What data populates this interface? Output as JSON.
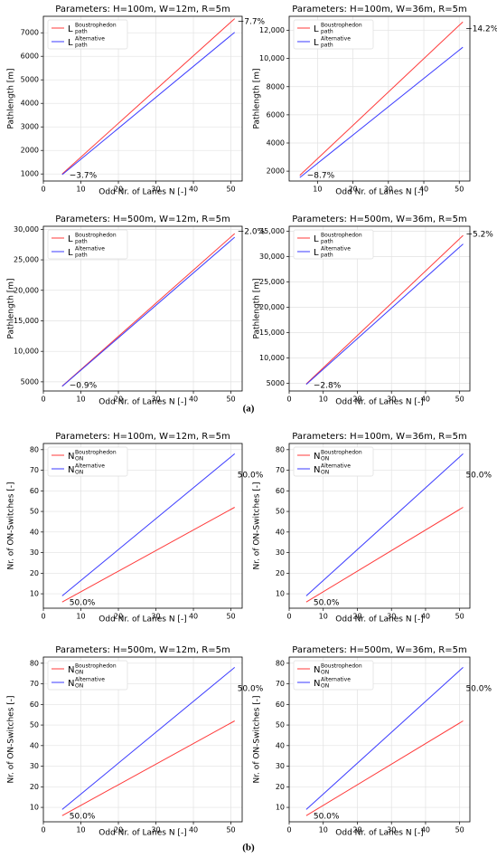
{
  "panel_labels": [
    "(a)",
    "(b)"
  ],
  "chart_data": [
    {
      "type": "line",
      "title": "Parameters: H=100m, W=12m, R=5m",
      "xlabel": "Odd Nr. of Lanes N [-]",
      "ylabel": "Pathlength [m]",
      "x": [
        5,
        51
      ],
      "xlim": [
        0,
        53
      ],
      "xticks": [
        0,
        10,
        20,
        30,
        40,
        50
      ],
      "ylim": [
        700,
        7700
      ],
      "yticks": [
        1000,
        2000,
        3000,
        4000,
        5000,
        6000,
        7000
      ],
      "grid": true,
      "legend": "upper-left",
      "series": [
        {
          "name": "Boustrophedon",
          "symbol": "L",
          "subscript": "path",
          "color": "#ff3b3b",
          "values": [
            1000,
            7600
          ]
        },
        {
          "name": "Alternative",
          "symbol": "L",
          "subscript": "path",
          "color": "#3b3bff",
          "values": [
            970,
            7020
          ]
        }
      ],
      "annotations": [
        "−7.7%",
        "−3.7%"
      ]
    },
    {
      "type": "line",
      "title": "Parameters: H=100m, W=36m, R=5m",
      "xlabel": "Odd Nr. of Lanes N [-]",
      "ylabel": "Pathlength [m]",
      "x": [
        5,
        51
      ],
      "xlim": [
        2,
        53
      ],
      "xticks": [
        10,
        20,
        30,
        40,
        50
      ],
      "ylim": [
        1300,
        13000
      ],
      "yticks": [
        2000,
        4000,
        6000,
        8000,
        {
          "value": 10000,
          "label": "10,000"
        },
        {
          "value": 12000,
          "label": "12,000"
        }
      ],
      "grid": true,
      "legend": "upper-left",
      "series": [
        {
          "name": "Boustrophedon",
          "symbol": "L",
          "subscript": "path",
          "color": "#ff3b3b",
          "values": [
            1700,
            12600
          ]
        },
        {
          "name": "Alternative",
          "symbol": "L",
          "subscript": "path",
          "color": "#3b3bff",
          "values": [
            1550,
            10800
          ]
        }
      ],
      "annotations": [
        "−14.2%",
        "−8.7%"
      ]
    },
    {
      "type": "line",
      "title": "Parameters: H=500m, W=12m, R=5m",
      "xlabel": "Odd Nr. of Lanes N [-]",
      "ylabel": "Pathlength [m]",
      "x": [
        5,
        51
      ],
      "xlim": [
        0,
        53
      ],
      "xticks": [
        0,
        10,
        20,
        30,
        40,
        50
      ],
      "ylim": [
        3500,
        30500
      ],
      "yticks": [
        5000,
        {
          "value": 10000,
          "label": "10,000"
        },
        {
          "value": 15000,
          "label": "15,000"
        },
        {
          "value": 20000,
          "label": "20,000"
        },
        {
          "value": 25000,
          "label": "25,000"
        },
        {
          "value": 30000,
          "label": "30,000"
        }
      ],
      "grid": true,
      "legend": "upper-left",
      "series": [
        {
          "name": "Boustrophedon",
          "symbol": "L",
          "subscript": "path",
          "color": "#ff3b3b",
          "values": [
            4300,
            29300
          ]
        },
        {
          "name": "Alternative",
          "symbol": "L",
          "subscript": "path",
          "color": "#3b3bff",
          "values": [
            4250,
            28700
          ]
        }
      ],
      "annotations": [
        "−2.0%",
        "−0.9%"
      ]
    },
    {
      "type": "line",
      "title": "Parameters: H=500m, W=36m, R=5m",
      "xlabel": "Odd Nr. of Lanes N [-]",
      "ylabel": "Pathlength [m]",
      "x": [
        5,
        51
      ],
      "xlim": [
        0,
        53
      ],
      "xticks": [
        0,
        10,
        20,
        30,
        40,
        50
      ],
      "ylim": [
        3500,
        36000
      ],
      "yticks": [
        5000,
        {
          "value": 10000,
          "label": "10,000"
        },
        {
          "value": 15000,
          "label": "15,000"
        },
        {
          "value": 20000,
          "label": "20,000"
        },
        {
          "value": 25000,
          "label": "25,000"
        },
        {
          "value": 30000,
          "label": "30,000"
        },
        {
          "value": 35000,
          "label": "35,000"
        }
      ],
      "grid": true,
      "legend": "upper-left",
      "series": [
        {
          "name": "Boustrophedon",
          "symbol": "L",
          "subscript": "path",
          "color": "#ff3b3b",
          "values": [
            4900,
            34200
          ]
        },
        {
          "name": "Alternative",
          "symbol": "L",
          "subscript": "path",
          "color": "#3b3bff",
          "values": [
            4800,
            32500
          ]
        }
      ],
      "annotations": [
        "−5.2%",
        "−2.8%"
      ]
    },
    {
      "type": "line",
      "title": "Parameters: H=100m, W=12m, R=5m",
      "xlabel": "Odd Nr. of Lanes N [-]",
      "ylabel": "Nr. of ON-Switches [-]",
      "x": [
        5,
        51
      ],
      "xlim": [
        0,
        53
      ],
      "xticks": [
        0,
        10,
        20,
        30,
        40,
        50
      ],
      "ylim": [
        3,
        83
      ],
      "yticks": [
        10,
        20,
        30,
        40,
        50,
        60,
        70,
        80
      ],
      "grid": true,
      "legend": "upper-left",
      "series": [
        {
          "name": "Boustrophedon",
          "symbol": "N",
          "subscript": "ON",
          "color": "#ff3b3b",
          "values": [
            6,
            52
          ]
        },
        {
          "name": "Alternative",
          "symbol": "N",
          "subscript": "ON",
          "color": "#3b3bff",
          "values": [
            9,
            78
          ]
        }
      ],
      "annotations": [
        "50.0%",
        "50.0%"
      ]
    },
    {
      "type": "line",
      "title": "Parameters: H=100m, W=36m, R=5m",
      "xlabel": "Odd Nr. of Lanes N [-]",
      "ylabel": "Nr. of ON-Switches [-]",
      "x": [
        5,
        51
      ],
      "xlim": [
        0,
        53
      ],
      "xticks": [
        0,
        10,
        20,
        30,
        40,
        50
      ],
      "ylim": [
        3,
        83
      ],
      "yticks": [
        10,
        20,
        30,
        40,
        50,
        60,
        70,
        80
      ],
      "grid": true,
      "legend": "upper-left",
      "series": [
        {
          "name": "Boustrophedon",
          "symbol": "N",
          "subscript": "ON",
          "color": "#ff3b3b",
          "values": [
            6,
            52
          ]
        },
        {
          "name": "Alternative",
          "symbol": "N",
          "subscript": "ON",
          "color": "#3b3bff",
          "values": [
            9,
            78
          ]
        }
      ],
      "annotations": [
        "50.0%",
        "50.0%"
      ]
    },
    {
      "type": "line",
      "title": "Parameters: H=500m, W=12m, R=5m",
      "xlabel": "Odd Nr. of Lanes N [-]",
      "ylabel": "Nr. of ON-Switches [-]",
      "x": [
        5,
        51
      ],
      "xlim": [
        0,
        53
      ],
      "xticks": [
        0,
        10,
        20,
        30,
        40,
        50
      ],
      "ylim": [
        3,
        83
      ],
      "yticks": [
        10,
        20,
        30,
        40,
        50,
        60,
        70,
        80
      ],
      "grid": true,
      "legend": "upper-left",
      "series": [
        {
          "name": "Boustrophedon",
          "symbol": "N",
          "subscript": "ON",
          "color": "#ff3b3b",
          "values": [
            6,
            52
          ]
        },
        {
          "name": "Alternative",
          "symbol": "N",
          "subscript": "ON",
          "color": "#3b3bff",
          "values": [
            9,
            78
          ]
        }
      ],
      "annotations": [
        "50.0%",
        "50.0%"
      ]
    },
    {
      "type": "line",
      "title": "Parameters: H=500m, W=36m, R=5m",
      "xlabel": "Odd Nr. of Lanes N [-]",
      "ylabel": "Nr. of ON-Switches [-]",
      "x": [
        5,
        51
      ],
      "xlim": [
        0,
        53
      ],
      "xticks": [
        0,
        10,
        20,
        30,
        40,
        50
      ],
      "ylim": [
        3,
        83
      ],
      "yticks": [
        10,
        20,
        30,
        40,
        50,
        60,
        70,
        80
      ],
      "grid": true,
      "legend": "upper-left",
      "series": [
        {
          "name": "Boustrophedon",
          "symbol": "N",
          "subscript": "ON",
          "color": "#ff3b3b",
          "values": [
            6,
            52
          ]
        },
        {
          "name": "Alternative",
          "symbol": "N",
          "subscript": "ON",
          "color": "#3b3bff",
          "values": [
            9,
            78
          ]
        }
      ],
      "annotations": [
        "50.0%",
        "50.0%"
      ]
    }
  ]
}
